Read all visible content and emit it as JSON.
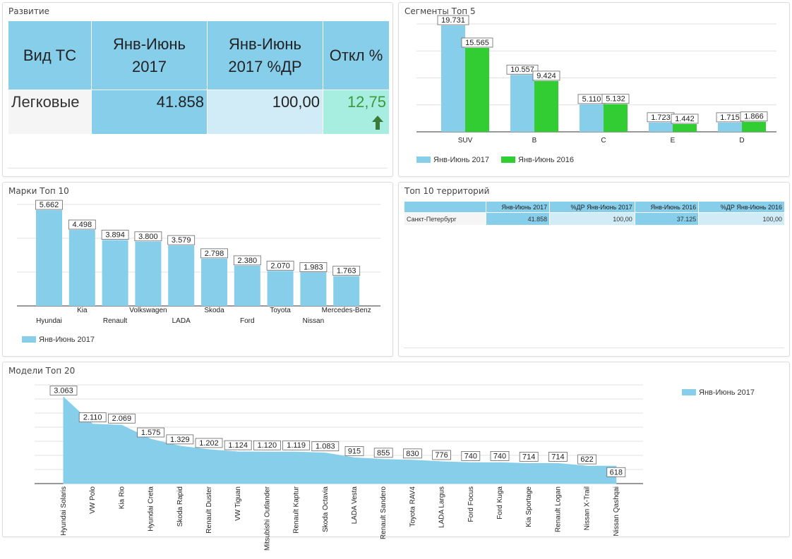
{
  "colors": {
    "blue": "#87ceeb",
    "green": "#32cd32",
    "light_blue": "#d2ecf7",
    "mint": "#a7eee0",
    "dev_text": "#3a9a3a"
  },
  "development": {
    "title": "Развитие",
    "headers": [
      "Вид ТС",
      "Янв-Июнь 2017",
      "Янв-Июнь 2017 %ДР",
      "Откл %"
    ],
    "row": {
      "type": "Легковые",
      "value_2017": "41.858",
      "pct_dr": "100,00",
      "deviation": "12,75",
      "trend_icon": "arrow-up-icon"
    }
  },
  "segments": {
    "title": "Сегменты Топ 5",
    "chart_data": {
      "type": "bar",
      "categories": [
        "SUV",
        "B",
        "C",
        "E",
        "D"
      ],
      "series": [
        {
          "name": "Янв-Июнь 2017",
          "values": [
            19.731,
            10.557,
            5.11,
            1.723,
            1.715
          ],
          "labels": [
            "19.731",
            "10.557",
            "5.110",
            "1.723",
            "1.715"
          ],
          "color": "#87ceeb"
        },
        {
          "name": "Янв-Июнь 2016",
          "values": [
            15.565,
            9.424,
            5.132,
            1.442,
            1.866
          ],
          "labels": [
            "15.565",
            "9.424",
            "5.132",
            "1.442",
            "1.866"
          ],
          "color": "#32cd32"
        }
      ],
      "ylim": [
        0,
        20
      ],
      "grid": true,
      "legend": "bottom-left"
    }
  },
  "brands": {
    "title": "Марки Топ 10",
    "chart_data": {
      "type": "bar",
      "categories": [
        "Hyundai",
        "Kia",
        "Renault",
        "Volkswagen",
        "LADA",
        "Skoda",
        "Ford",
        "Toyota",
        "Nissan",
        "Mercedes-Benz"
      ],
      "series": [
        {
          "name": "Янв-Июнь 2017",
          "values": [
            5.662,
            4.498,
            3.894,
            3.8,
            3.579,
            2.798,
            2.38,
            2.07,
            1.983,
            1.763
          ],
          "labels": [
            "5.662",
            "4.498",
            "3.894",
            "3.800",
            "3.579",
            "2.798",
            "2.380",
            "2.070",
            "1.983",
            "1.763"
          ],
          "color": "#87ceeb"
        }
      ],
      "ylim": [
        0,
        6
      ],
      "grid": true,
      "legend": "bottom-left"
    }
  },
  "territories": {
    "title": "Топ 10 территорий",
    "columns": [
      "",
      "Янв-Июнь 2017",
      "%ДР Янв-Июнь 2017",
      "Янв-Июнь 2016",
      "%ДР Янв-Июнь 2016"
    ],
    "rows": [
      {
        "name": "Санкт-Петербург",
        "v2017": "41.858",
        "pct2017": "100,00",
        "v2016": "37.125",
        "pct2016": "100,00"
      }
    ]
  },
  "models": {
    "title": "Модели Топ 20",
    "chart_data": {
      "type": "area",
      "categories": [
        "Hyundai Solaris",
        "VW Polo",
        "Kia Rio",
        "Hyundai Creta",
        "Skoda Rapid",
        "Renault Duster",
        "VW Tiguan",
        "Mitsubishi Outlander",
        "Renault Kaptur",
        "Skoda Octavia",
        "LADA Vesta",
        "Renault Sandero",
        "Toyota RAV4",
        "LADA Largus",
        "Ford Focus",
        "Ford Kuga",
        "Kia Sportage",
        "Renault Logan",
        "Nissan X-Trail",
        "Nissan Qashqai"
      ],
      "series": [
        {
          "name": "Янв-Июнь 2017",
          "values": [
            3063,
            2110,
            2069,
            1575,
            1329,
            1202,
            1124,
            1120,
            1119,
            1083,
            915,
            855,
            830,
            776,
            740,
            740,
            714,
            714,
            622,
            618
          ],
          "labels": [
            "3.063",
            "2.110",
            "2.069",
            "1.575",
            "1.329",
            "1.202",
            "1.124",
            "1.120",
            "1.119",
            "1.083",
            "915",
            "855",
            "830",
            "776",
            "740",
            "740",
            "714",
            "714",
            "622",
            "618"
          ],
          "color": "#87ceeb"
        }
      ],
      "ylim": [
        0,
        3500
      ],
      "grid": true,
      "legend": "top-right"
    }
  }
}
